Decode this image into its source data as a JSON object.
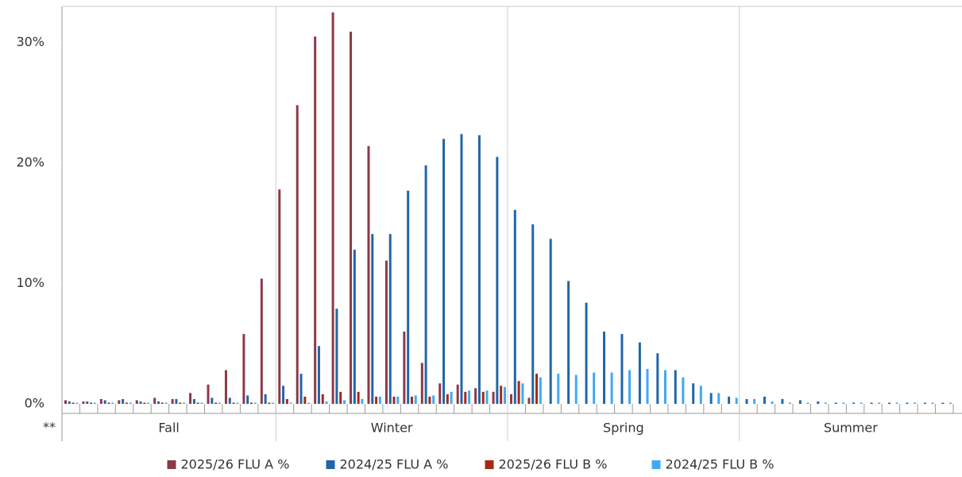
{
  "chart_data": {
    "type": "bar",
    "categories": [
      null,
      null,
      null,
      null,
      null,
      null,
      null,
      null,
      null,
      null,
      null,
      null,
      null,
      null,
      null,
      null,
      null,
      null,
      null,
      null,
      null,
      null,
      null,
      null,
      null,
      null,
      null,
      null,
      null,
      null,
      null,
      null,
      null,
      null,
      null,
      null,
      null,
      null,
      null,
      null,
      null,
      null,
      null,
      null,
      null,
      null,
      null,
      null,
      null,
      null
    ],
    "seasons": [
      "Fall",
      "Winter",
      "Spring",
      "Summer"
    ],
    "axis_note": "**",
    "ylim": [
      0,
      33
    ],
    "yticks": [
      {
        "value": 0,
        "label": "0%"
      },
      {
        "value": 10,
        "label": "10%"
      },
      {
        "value": 20,
        "label": "20%"
      },
      {
        "value": 30,
        "label": "30%"
      }
    ],
    "series": [
      {
        "name": "2025/26 FLU A %",
        "color": "#8b3a48",
        "values": [
          0.3,
          0.2,
          0.4,
          0.3,
          0.3,
          0.5,
          0.4,
          0.9,
          1.6,
          2.8,
          5.8,
          10.4,
          17.8,
          24.8,
          30.5,
          32.5,
          30.9,
          21.4,
          11.9,
          6.0,
          3.4,
          1.7,
          1.6,
          1.3,
          1.0,
          0.8,
          0.5,
          null,
          null,
          null,
          null,
          null,
          null,
          null,
          null,
          null,
          null,
          null,
          null,
          null,
          null,
          null,
          null,
          null,
          null,
          null,
          null,
          null,
          null,
          null
        ]
      },
      {
        "name": "2024/25 FLU A %",
        "color": "#2166a8",
        "values": [
          0.2,
          0.2,
          0.3,
          0.4,
          0.2,
          0.2,
          0.4,
          0.4,
          0.5,
          0.5,
          0.7,
          0.8,
          1.5,
          2.5,
          4.8,
          7.9,
          12.8,
          14.1,
          14.1,
          17.7,
          19.8,
          22.0,
          22.4,
          22.3,
          20.5,
          16.1,
          14.9,
          13.7,
          10.2,
          8.4,
          6.0,
          5.8,
          5.1,
          4.2,
          2.8,
          1.7,
          0.9,
          0.6,
          0.4,
          0.6,
          0.4,
          0.3,
          0.2,
          0.1,
          0.1,
          0.1,
          0.1,
          0.1,
          0.1,
          0.1
        ]
      },
      {
        "name": "2025/26 FLU B %",
        "color": "#a42a17",
        "values": [
          0.1,
          0.1,
          0.1,
          0.1,
          0.1,
          0.1,
          0.1,
          0.1,
          0.1,
          0.1,
          0.1,
          0.1,
          0.4,
          0.6,
          0.8,
          1.0,
          1.0,
          0.6,
          0.6,
          0.6,
          0.6,
          0.8,
          1.0,
          1.0,
          1.5,
          1.9,
          2.5,
          null,
          null,
          null,
          null,
          null,
          null,
          null,
          null,
          null,
          null,
          null,
          null,
          null,
          null,
          null,
          null,
          null,
          null,
          null,
          null,
          null,
          null,
          null
        ]
      },
      {
        "name": "2024/25 FLU B %",
        "color": "#3fa9f5",
        "values": [
          0.1,
          0.1,
          0.1,
          0.1,
          0.1,
          0.1,
          0.1,
          0.1,
          0.1,
          0.1,
          0.1,
          0.1,
          0.1,
          0.1,
          0.2,
          0.3,
          0.4,
          0.6,
          0.6,
          0.7,
          0.7,
          1.0,
          1.1,
          1.1,
          1.4,
          1.7,
          2.2,
          2.5,
          2.4,
          2.6,
          2.6,
          2.8,
          2.9,
          2.8,
          2.2,
          1.5,
          0.9,
          0.5,
          0.4,
          0.2,
          0.1,
          0.1,
          0.1,
          0.1,
          0.1,
          0.1,
          0.1,
          0.1,
          0.1,
          0.1
        ]
      }
    ],
    "grid": true,
    "legend": "bottom"
  }
}
